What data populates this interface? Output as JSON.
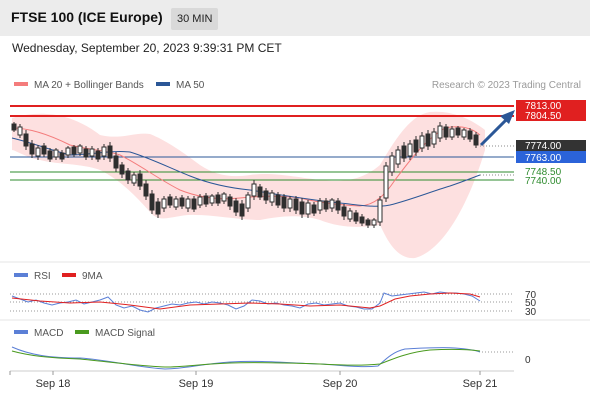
{
  "header": {
    "title": "FTSE 100 (ICE Europe)",
    "timeframe": "30 MIN"
  },
  "datetime": "Wednesday, September 20, 2023 9:39:31 PM CET",
  "legend": {
    "ma20_bb": "MA 20 + Bollinger Bands",
    "ma50": "MA 50"
  },
  "credit": "Research © 2023 Trading Central",
  "price_tags": {
    "t7813": "7813.00",
    "t7804": "7804.50",
    "t7774": "7774.00",
    "t7763": "7763.00",
    "t7748": "7748.50",
    "t7740": "7740.00"
  },
  "rsi": {
    "label": "RSI",
    "ma_label": "9MA",
    "levels": [
      "70",
      "50",
      "30"
    ]
  },
  "macd": {
    "label": "MACD",
    "signal_label": "MACD Signal",
    "zero": "0"
  },
  "x_axis": [
    "Sep 18",
    "Sep 19",
    "Sep 20",
    "Sep 21"
  ],
  "colors": {
    "bull": "#2e2e2e",
    "bear": "#2e2e2e",
    "ma20": "#f47c7c",
    "ma50": "#2b5797",
    "bb_fill": "#fde0e0",
    "resistance": "#e02020",
    "support_blue": "#2b5797",
    "support_green": "#2e8b2e",
    "arrow": "#2b5797",
    "rsi": "#5b7fd6",
    "rsi_ma": "#e02020",
    "macd": "#5b7fd6",
    "macd_signal": "#4a9a1e"
  }
}
